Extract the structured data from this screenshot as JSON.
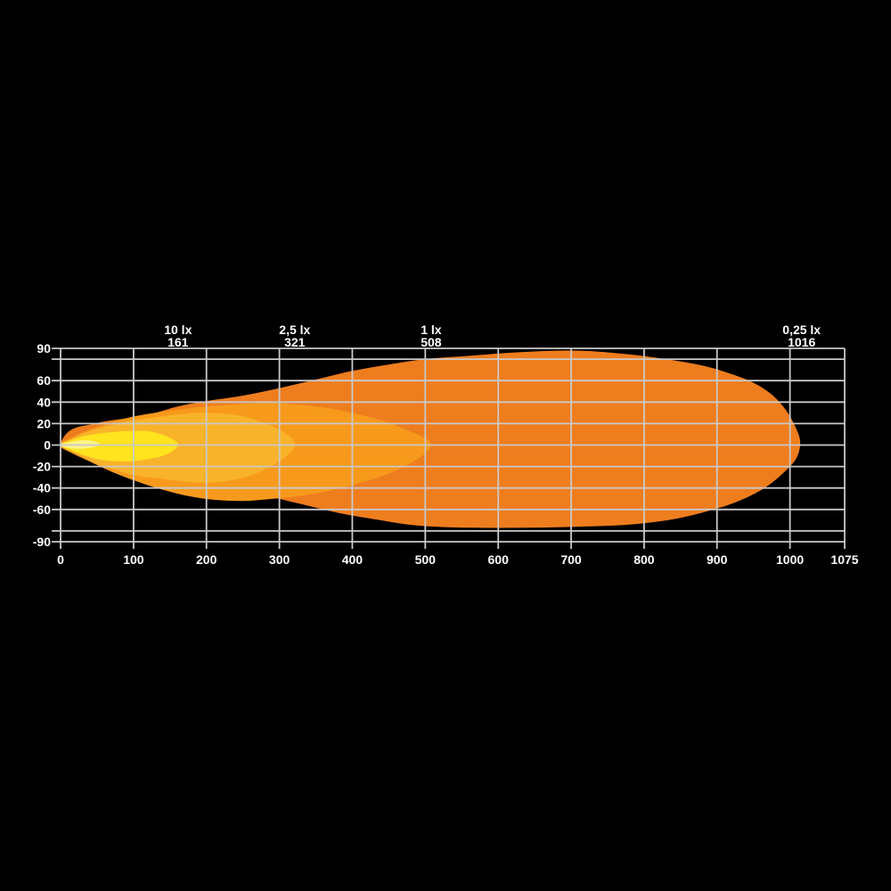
{
  "background_color": "#000000",
  "chart_data": {
    "type": "contour",
    "description": "Isolux light-beam pattern diagram (beam distance in m vs lateral spread in m)",
    "grid_color": "#c9c9c9",
    "label_color": "#ffffff",
    "x_axis": {
      "min": 0,
      "max": 1075,
      "tick_labels": [
        "0",
        "100",
        "200",
        "300",
        "400",
        "500",
        "600",
        "700",
        "800",
        "900",
        "1000",
        "1075"
      ],
      "tick_values": [
        0,
        100,
        200,
        300,
        400,
        500,
        600,
        700,
        800,
        900,
        1000,
        1075
      ]
    },
    "y_axis": {
      "min": -90,
      "max": 90,
      "label_values": [
        90,
        60,
        40,
        20,
        0,
        -20,
        -40,
        -60,
        -90
      ],
      "labels": [
        "90",
        "60",
        "40",
        "20",
        "0",
        "-20",
        "-40",
        "-60",
        "-90"
      ],
      "gridline_values": [
        90,
        80,
        60,
        40,
        20,
        0,
        -20,
        -40,
        -60,
        -80,
        -90
      ]
    },
    "top_labels": [
      {
        "lux": "10 lx",
        "distance": "161",
        "at": 161
      },
      {
        "lux": "2,5 lx",
        "distance": "321",
        "at": 321
      },
      {
        "lux": "1 lx",
        "distance": "508",
        "at": 508
      },
      {
        "lux": "0,25 lx",
        "distance": "1016",
        "at": 1016
      }
    ],
    "contours": [
      {
        "name": "0,25 lx",
        "distance": 1016,
        "color": "#ee7d1e",
        "points": [
          [
            0,
            2
          ],
          [
            6,
            9
          ],
          [
            14,
            14
          ],
          [
            25,
            17
          ],
          [
            40,
            19
          ],
          [
            60,
            22
          ],
          [
            80,
            24
          ],
          [
            100,
            26
          ],
          [
            130,
            30
          ],
          [
            161,
            36
          ],
          [
            200,
            41
          ],
          [
            250,
            46
          ],
          [
            300,
            53
          ],
          [
            350,
            61
          ],
          [
            400,
            69
          ],
          [
            450,
            75
          ],
          [
            500,
            80
          ],
          [
            560,
            83
          ],
          [
            620,
            86
          ],
          [
            700,
            88
          ],
          [
            770,
            85
          ],
          [
            830,
            80
          ],
          [
            880,
            74
          ],
          [
            920,
            66
          ],
          [
            950,
            58
          ],
          [
            975,
            47
          ],
          [
            995,
            32
          ],
          [
            1008,
            16
          ],
          [
            1014,
            3
          ],
          [
            1009,
            -12
          ],
          [
            991,
            -26
          ],
          [
            965,
            -40
          ],
          [
            930,
            -52
          ],
          [
            890,
            -61
          ],
          [
            840,
            -69
          ],
          [
            780,
            -74
          ],
          [
            710,
            -76
          ],
          [
            640,
            -77
          ],
          [
            560,
            -77
          ],
          [
            490,
            -75
          ],
          [
            430,
            -69
          ],
          [
            380,
            -63
          ],
          [
            330,
            -55
          ],
          [
            280,
            -47
          ],
          [
            230,
            -42
          ],
          [
            180,
            -35
          ],
          [
            140,
            -27
          ],
          [
            100,
            -21
          ],
          [
            70,
            -15
          ],
          [
            45,
            -10
          ],
          [
            25,
            -7
          ],
          [
            10,
            -4
          ],
          [
            0,
            -2
          ]
        ]
      },
      {
        "name": "1 lx",
        "distance": 508,
        "color": "#f79a1c",
        "points": [
          [
            0,
            2
          ],
          [
            15,
            7
          ],
          [
            35,
            13
          ],
          [
            60,
            19
          ],
          [
            90,
            25
          ],
          [
            120,
            29
          ],
          [
            160,
            33
          ],
          [
            200,
            36
          ],
          [
            240,
            38
          ],
          [
            280,
            39
          ],
          [
            320,
            38
          ],
          [
            360,
            35
          ],
          [
            400,
            30
          ],
          [
            440,
            23
          ],
          [
            475,
            14
          ],
          [
            498,
            7
          ],
          [
            508,
            1
          ],
          [
            501,
            -7
          ],
          [
            482,
            -16
          ],
          [
            452,
            -26
          ],
          [
            412,
            -35
          ],
          [
            372,
            -42
          ],
          [
            332,
            -47
          ],
          [
            292,
            -50
          ],
          [
            252,
            -52
          ],
          [
            212,
            -51
          ],
          [
            172,
            -47
          ],
          [
            132,
            -40
          ],
          [
            97,
            -32
          ],
          [
            67,
            -24
          ],
          [
            42,
            -16
          ],
          [
            20,
            -9
          ],
          [
            0,
            -2
          ]
        ]
      },
      {
        "name": "2,5 lx",
        "distance": 321,
        "color": "#f9b32a",
        "points": [
          [
            0,
            1
          ],
          [
            15,
            6
          ],
          [
            35,
            12
          ],
          [
            60,
            17
          ],
          [
            90,
            22
          ],
          [
            120,
            25
          ],
          [
            155,
            28
          ],
          [
            190,
            30
          ],
          [
            225,
            29
          ],
          [
            255,
            26
          ],
          [
            285,
            19
          ],
          [
            308,
            11
          ],
          [
            321,
            2
          ],
          [
            315,
            -7
          ],
          [
            295,
            -17
          ],
          [
            270,
            -26
          ],
          [
            240,
            -32
          ],
          [
            205,
            -35
          ],
          [
            170,
            -34
          ],
          [
            135,
            -31
          ],
          [
            100,
            -28
          ],
          [
            70,
            -22
          ],
          [
            45,
            -16
          ],
          [
            25,
            -9
          ],
          [
            0,
            -1
          ]
        ]
      },
      {
        "name": "10 lx",
        "distance": 161,
        "color": "#ffe41e",
        "points": [
          [
            0,
            1
          ],
          [
            12,
            4
          ],
          [
            25,
            7
          ],
          [
            45,
            10
          ],
          [
            70,
            12
          ],
          [
            95,
            13
          ],
          [
            118,
            13
          ],
          [
            138,
            10
          ],
          [
            152,
            6
          ],
          [
            161,
            1
          ],
          [
            155,
            -5
          ],
          [
            140,
            -10
          ],
          [
            120,
            -13
          ],
          [
            98,
            -15
          ],
          [
            75,
            -15
          ],
          [
            50,
            -13
          ],
          [
            30,
            -9
          ],
          [
            14,
            -5
          ],
          [
            0,
            -1
          ]
        ]
      },
      {
        "name": "hotspot-core",
        "distance": 55,
        "color": "#fff387",
        "points": [
          [
            0,
            1
          ],
          [
            10,
            2.5
          ],
          [
            22,
            4
          ],
          [
            35,
            4.5
          ],
          [
            46,
            3.5
          ],
          [
            54,
            1
          ],
          [
            48,
            -1.5
          ],
          [
            36,
            -3
          ],
          [
            22,
            -3.5
          ],
          [
            10,
            -2.5
          ],
          [
            0,
            -1
          ]
        ]
      }
    ]
  }
}
